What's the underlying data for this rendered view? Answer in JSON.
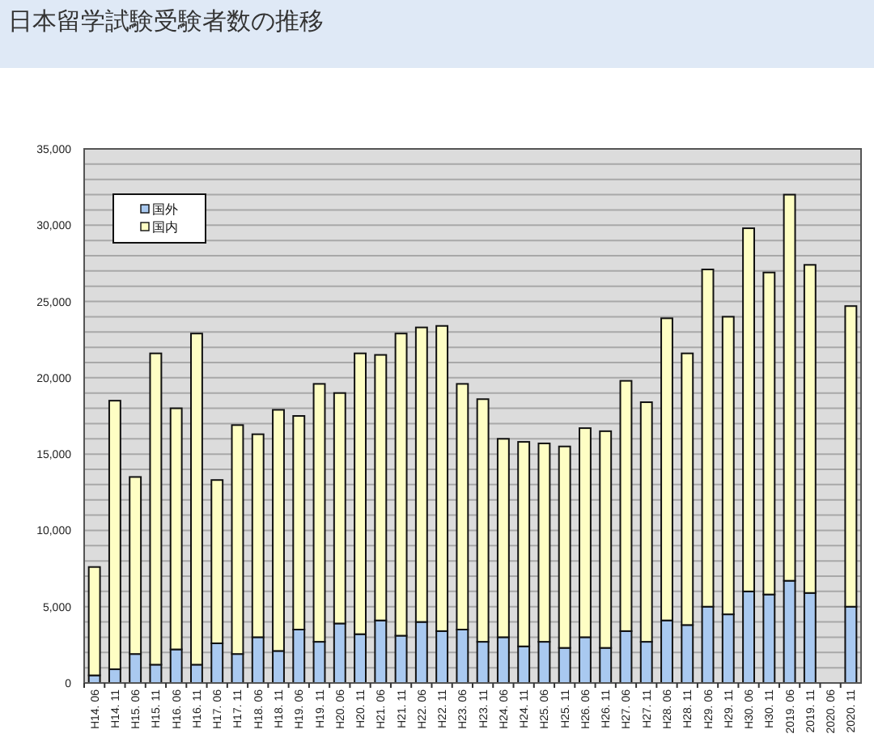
{
  "chart_data": {
    "type": "bar",
    "stacked": true,
    "title": "日本留学試験受験者数の推移",
    "categories": [
      "H14. 06",
      "H14. 11",
      "H15. 06",
      "H15. 11",
      "H16. 06",
      "H16. 11",
      "H17. 06",
      "H17. 11",
      "H18. 06",
      "H18. 11",
      "H19. 06",
      "H19. 11",
      "H20. 06",
      "H20. 11",
      "H21. 06",
      "H21. 11",
      "H22. 06",
      "H22. 11",
      "H23. 06",
      "H23. 11",
      "H24. 06",
      "H24. 11",
      "H25. 06",
      "H25. 11",
      "H26. 06",
      "H26. 11",
      "H27. 06",
      "H27. 11",
      "H28. 06",
      "H28. 11",
      "H29. 06",
      "H29. 11",
      "H30. 06",
      "H30. 11",
      "2019. 06",
      "2019. 11",
      "2020. 06",
      "2020. 11"
    ],
    "series": [
      {
        "name": "国外",
        "color": "#a9c9f0",
        "values": [
          500,
          900,
          1900,
          1200,
          2200,
          1200,
          2600,
          1900,
          3000,
          2100,
          3500,
          2700,
          3900,
          3200,
          4100,
          3100,
          4000,
          3400,
          3500,
          2700,
          3000,
          2400,
          2700,
          2300,
          3000,
          2300,
          3400,
          2700,
          4100,
          3800,
          5000,
          4500,
          6000,
          5800,
          6700,
          5900,
          null,
          5000
        ]
      },
      {
        "name": "国内",
        "color": "#fefec4",
        "values": [
          7100,
          17600,
          11600,
          20400,
          15800,
          21700,
          10700,
          15000,
          13300,
          15800,
          14000,
          16900,
          15100,
          18400,
          17400,
          19800,
          19300,
          20000,
          16100,
          15900,
          13000,
          13400,
          13000,
          13200,
          13700,
          14200,
          16400,
          15700,
          19800,
          17800,
          22100,
          19500,
          23800,
          21100,
          25300,
          21500,
          null,
          19700
        ]
      }
    ],
    "ylim": [
      0,
      35000
    ],
    "yticks": [
      {
        "value": 0,
        "label": "0"
      },
      {
        "value": 1000,
        "label": null
      },
      {
        "value": 2000,
        "label": null
      },
      {
        "value": 3000,
        "label": null
      },
      {
        "value": 4000,
        "label": null
      },
      {
        "value": 5000,
        "label": "5,000"
      },
      {
        "value": 6000,
        "label": null
      },
      {
        "value": 7000,
        "label": null
      },
      {
        "value": 8000,
        "label": null
      },
      {
        "value": 9000,
        "label": null
      },
      {
        "value": 10000,
        "label": "10,000"
      },
      {
        "value": 11000,
        "label": null
      },
      {
        "value": 12000,
        "label": null
      },
      {
        "value": 13000,
        "label": null
      },
      {
        "value": 14000,
        "label": null
      },
      {
        "value": 15000,
        "label": "15,000"
      },
      {
        "value": 16000,
        "label": null
      },
      {
        "value": 17000,
        "label": null
      },
      {
        "value": 18000,
        "label": null
      },
      {
        "value": 19000,
        "label": null
      },
      {
        "value": 20000,
        "label": "20,000"
      },
      {
        "value": 21000,
        "label": null
      },
      {
        "value": 22000,
        "label": null
      },
      {
        "value": 23000,
        "label": null
      },
      {
        "value": 24000,
        "label": null
      },
      {
        "value": 25000,
        "label": "25,000"
      },
      {
        "value": 26000,
        "label": null
      },
      {
        "value": 27000,
        "label": null
      },
      {
        "value": 28000,
        "label": null
      },
      {
        "value": 29000,
        "label": null
      },
      {
        "value": 30000,
        "label": "30,000"
      },
      {
        "value": 31000,
        "label": null
      },
      {
        "value": 32000,
        "label": null
      },
      {
        "value": 33000,
        "label": null
      },
      {
        "value": 34000,
        "label": null
      },
      {
        "value": 35000,
        "label": "35,000"
      }
    ],
    "grid": "y",
    "legend": "top left"
  }
}
